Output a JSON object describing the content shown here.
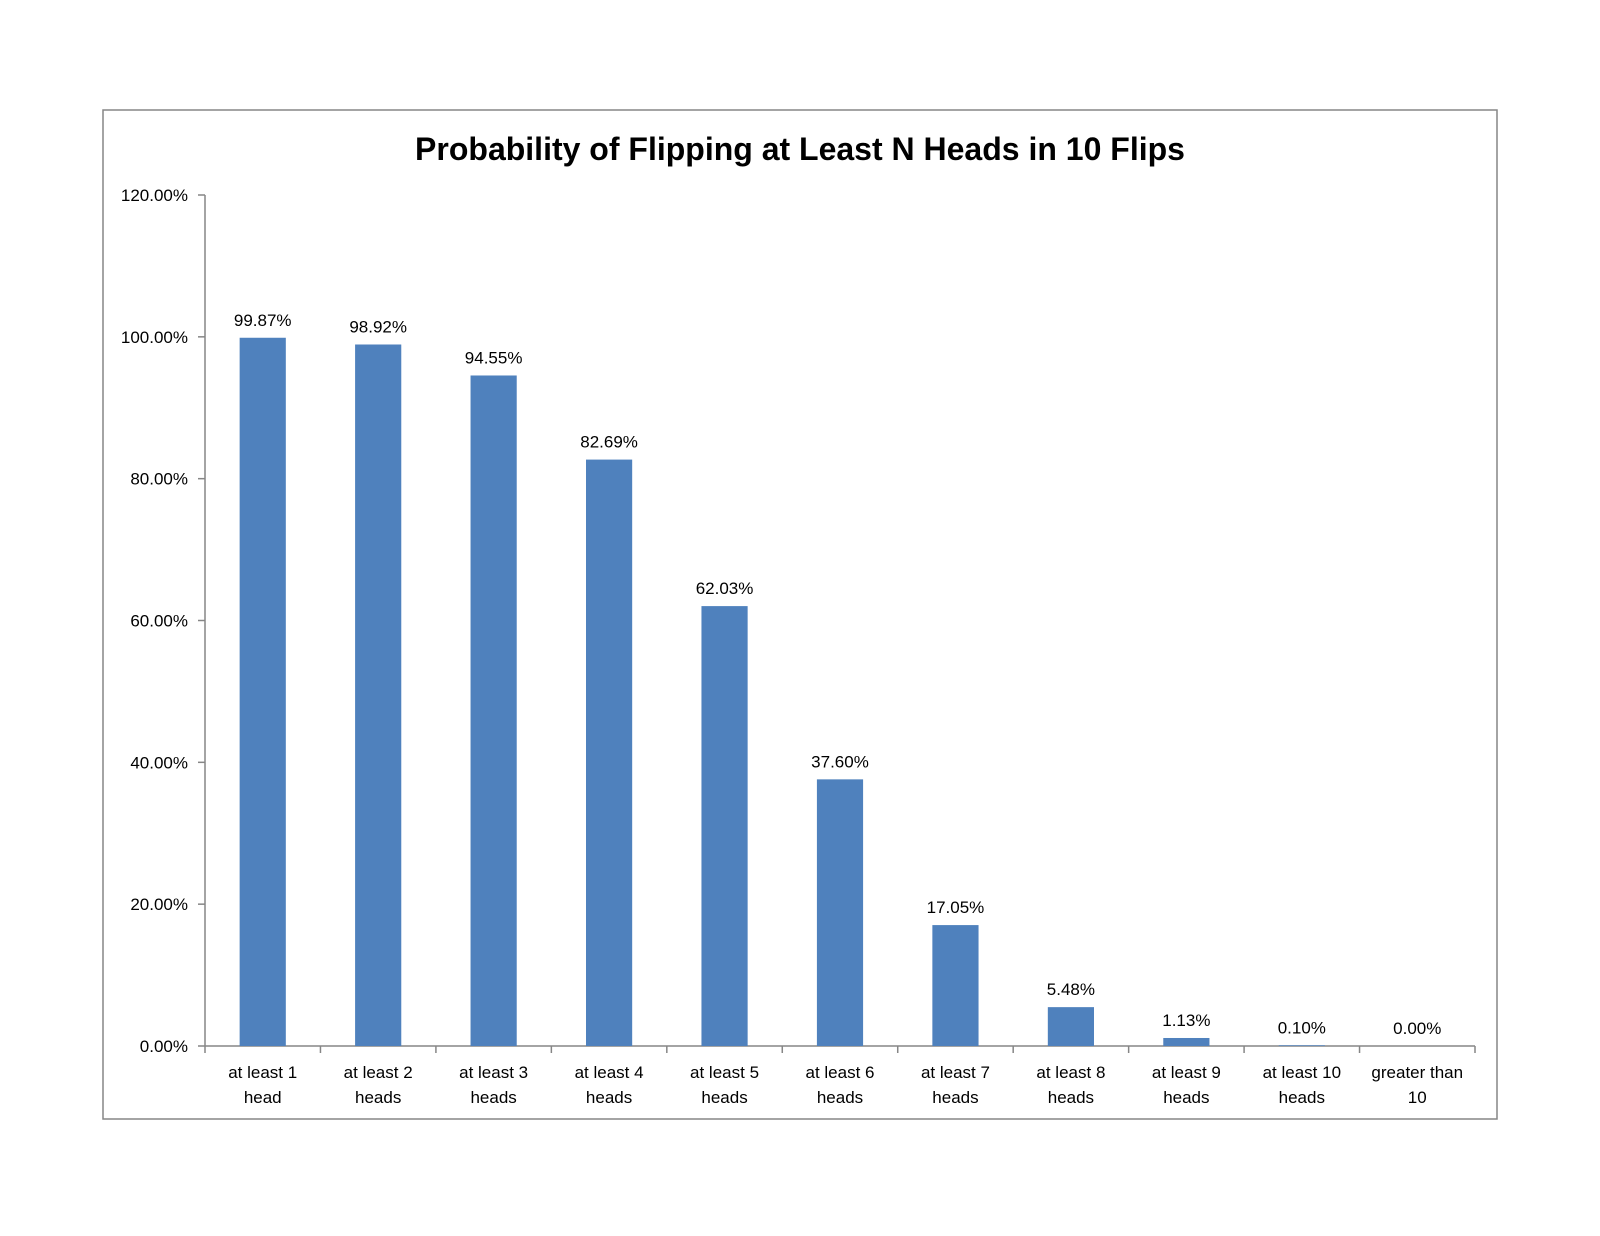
{
  "chart_data": {
    "type": "bar",
    "title": "Probability of Flipping at Least N Heads in 10 Flips",
    "xlabel": "",
    "ylabel": "",
    "categories": [
      [
        "at least 1",
        "head"
      ],
      [
        "at least 2",
        "heads"
      ],
      [
        "at least 3",
        "heads"
      ],
      [
        "at least 4",
        "heads"
      ],
      [
        "at least 5",
        "heads"
      ],
      [
        "at least 6",
        "heads"
      ],
      [
        "at least 7",
        "heads"
      ],
      [
        "at least 8",
        "heads"
      ],
      [
        "at least 9",
        "heads"
      ],
      [
        "at least 10",
        "heads"
      ],
      [
        "greater than",
        "10"
      ]
    ],
    "values": [
      99.87,
      98.92,
      94.55,
      82.69,
      62.03,
      37.6,
      17.05,
      5.48,
      1.13,
      0.1,
      0.0
    ],
    "data_labels": [
      "99.87%",
      "98.92%",
      "94.55%",
      "82.69%",
      "62.03%",
      "37.60%",
      "17.05%",
      "5.48%",
      "1.13%",
      "0.10%",
      "0.00%"
    ],
    "ylim": [
      0,
      120
    ],
    "yticks": [
      0,
      20,
      40,
      60,
      80,
      100,
      120
    ],
    "ytick_labels": [
      "0.00%",
      "20.00%",
      "40.00%",
      "60.00%",
      "80.00%",
      "100.00%",
      "120.00%"
    ],
    "grid": false,
    "legend": "none",
    "colors": {
      "bar": "#4f81bd",
      "axis": "#868686",
      "frame": "#868686"
    }
  }
}
